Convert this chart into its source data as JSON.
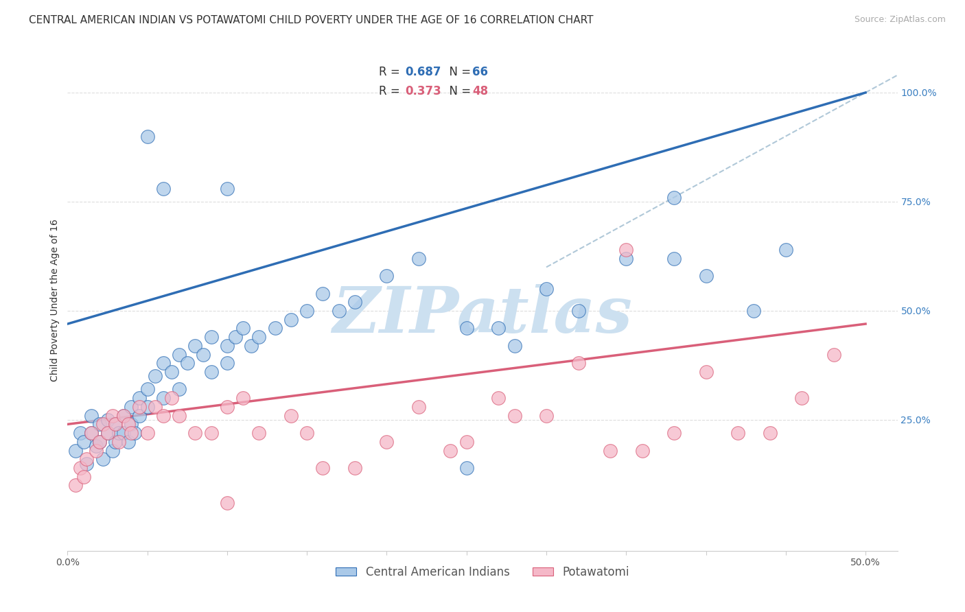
{
  "title": "CENTRAL AMERICAN INDIAN VS POTAWATOMI CHILD POVERTY UNDER THE AGE OF 16 CORRELATION CHART",
  "source": "Source: ZipAtlas.com",
  "ylabel": "Child Poverty Under the Age of 16",
  "xlim": [
    0.0,
    0.52
  ],
  "ylim": [
    -0.05,
    1.1
  ],
  "xticks": [
    0.0,
    0.05,
    0.1,
    0.15,
    0.2,
    0.25,
    0.3,
    0.35,
    0.4,
    0.45,
    0.5
  ],
  "yticks_right": [
    0.25,
    0.5,
    0.75,
    1.0
  ],
  "ytick_right_labels": [
    "25.0%",
    "50.0%",
    "75.0%",
    "100.0%"
  ],
  "blue_color": "#aac9e8",
  "pink_color": "#f5b8c8",
  "blue_line_color": "#2e6db4",
  "pink_line_color": "#d95f79",
  "watermark": "ZIPatlas",
  "watermark_color": "#cce0f0",
  "legend_r_blue": "0.687",
  "legend_n_blue": "66",
  "legend_r_pink": "0.373",
  "legend_n_pink": "48",
  "blue_scatter_x": [
    0.005,
    0.008,
    0.01,
    0.012,
    0.015,
    0.015,
    0.018,
    0.02,
    0.02,
    0.022,
    0.025,
    0.025,
    0.028,
    0.03,
    0.03,
    0.032,
    0.035,
    0.035,
    0.038,
    0.04,
    0.04,
    0.042,
    0.045,
    0.045,
    0.05,
    0.05,
    0.055,
    0.06,
    0.06,
    0.065,
    0.07,
    0.07,
    0.075,
    0.08,
    0.085,
    0.09,
    0.09,
    0.1,
    0.1,
    0.105,
    0.11,
    0.115,
    0.12,
    0.13,
    0.14,
    0.15,
    0.16,
    0.17,
    0.18,
    0.2,
    0.22,
    0.25,
    0.27,
    0.28,
    0.3,
    0.32,
    0.35,
    0.38,
    0.4,
    0.43,
    0.45,
    0.25,
    0.1,
    0.06,
    0.38,
    0.05
  ],
  "blue_scatter_y": [
    0.18,
    0.22,
    0.2,
    0.15,
    0.22,
    0.26,
    0.19,
    0.24,
    0.2,
    0.16,
    0.22,
    0.25,
    0.18,
    0.24,
    0.2,
    0.22,
    0.26,
    0.22,
    0.2,
    0.28,
    0.24,
    0.22,
    0.3,
    0.26,
    0.32,
    0.28,
    0.35,
    0.38,
    0.3,
    0.36,
    0.4,
    0.32,
    0.38,
    0.42,
    0.4,
    0.44,
    0.36,
    0.38,
    0.42,
    0.44,
    0.46,
    0.42,
    0.44,
    0.46,
    0.48,
    0.5,
    0.54,
    0.5,
    0.52,
    0.58,
    0.62,
    0.14,
    0.46,
    0.42,
    0.55,
    0.5,
    0.62,
    0.62,
    0.58,
    0.5,
    0.64,
    0.46,
    0.78,
    0.78,
    0.76,
    0.9
  ],
  "pink_scatter_x": [
    0.005,
    0.008,
    0.01,
    0.012,
    0.015,
    0.018,
    0.02,
    0.022,
    0.025,
    0.028,
    0.03,
    0.032,
    0.035,
    0.038,
    0.04,
    0.045,
    0.05,
    0.055,
    0.06,
    0.065,
    0.07,
    0.08,
    0.09,
    0.1,
    0.11,
    0.12,
    0.14,
    0.15,
    0.16,
    0.18,
    0.2,
    0.22,
    0.24,
    0.25,
    0.27,
    0.28,
    0.3,
    0.32,
    0.34,
    0.36,
    0.38,
    0.4,
    0.42,
    0.44,
    0.46,
    0.48,
    0.1,
    0.35
  ],
  "pink_scatter_y": [
    0.1,
    0.14,
    0.12,
    0.16,
    0.22,
    0.18,
    0.2,
    0.24,
    0.22,
    0.26,
    0.24,
    0.2,
    0.26,
    0.24,
    0.22,
    0.28,
    0.22,
    0.28,
    0.26,
    0.3,
    0.26,
    0.22,
    0.22,
    0.28,
    0.3,
    0.22,
    0.26,
    0.22,
    0.14,
    0.14,
    0.2,
    0.28,
    0.18,
    0.2,
    0.3,
    0.26,
    0.26,
    0.38,
    0.18,
    0.18,
    0.22,
    0.36,
    0.22,
    0.22,
    0.3,
    0.4,
    0.06,
    0.64
  ],
  "blue_line_x": [
    0.0,
    0.5
  ],
  "blue_line_y": [
    0.47,
    1.0
  ],
  "pink_line_x": [
    0.0,
    0.5
  ],
  "pink_line_y": [
    0.24,
    0.47
  ],
  "ref_line_x": [
    0.3,
    0.52
  ],
  "ref_line_y": [
    0.6,
    1.04
  ],
  "background_color": "#ffffff",
  "grid_color": "#dddddd",
  "title_fontsize": 11,
  "axis_label_fontsize": 10,
  "tick_fontsize": 10,
  "legend_fontsize": 12
}
